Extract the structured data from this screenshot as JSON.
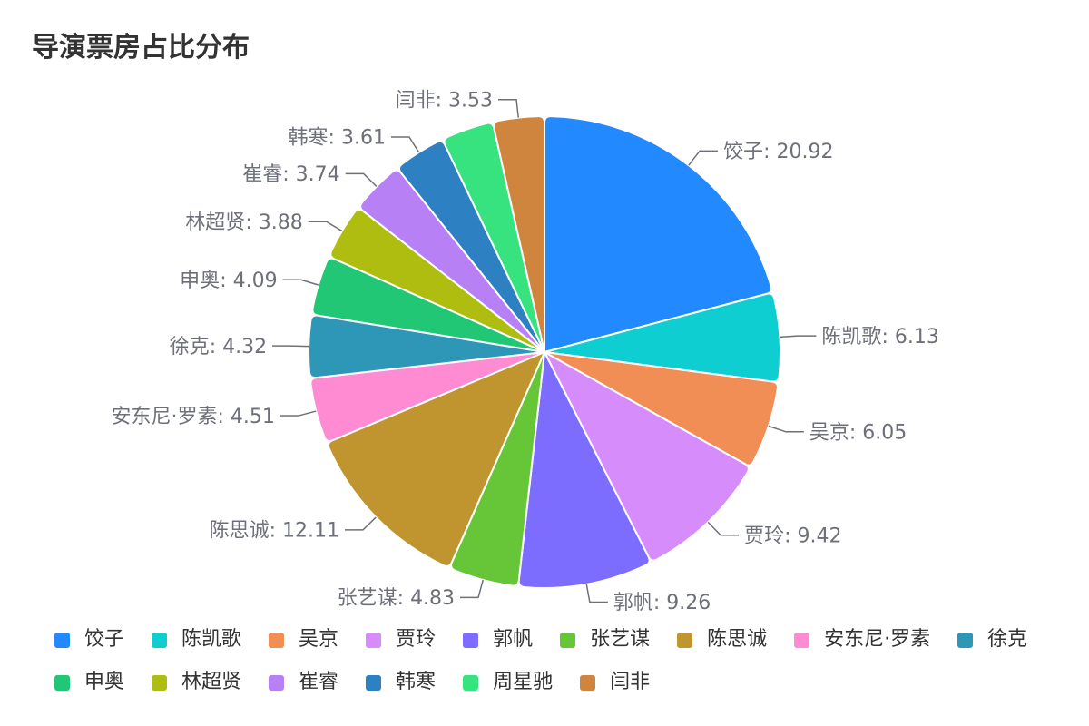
{
  "chart_data": {
    "type": "pie",
    "title": "导演票房占比分布",
    "categories": [
      "饺子",
      "陈凯歌",
      "吴京",
      "贾玲",
      "郭帆",
      "张艺谋",
      "陈思诚",
      "安东尼·罗素",
      "徐克",
      "申奥",
      "林超贤",
      "崔睿",
      "韩寒",
      "周星驰",
      "闫非"
    ],
    "values": [
      20.92,
      6.13,
      6.05,
      9.42,
      9.26,
      4.83,
      12.11,
      4.51,
      4.32,
      4.09,
      3.88,
      3.74,
      3.61,
      3.6,
      3.53
    ],
    "label_visible": [
      true,
      true,
      true,
      true,
      true,
      true,
      true,
      true,
      true,
      true,
      true,
      true,
      true,
      false,
      true
    ],
    "label_separator": ": ",
    "colors": [
      "#2389FF",
      "#0FCED1",
      "#F08E55",
      "#D68CFB",
      "#7C6DFF",
      "#67C638",
      "#C09530",
      "#FF8BD2",
      "#2E97B8",
      "#22C776",
      "#AFBD10",
      "#B880F5",
      "#2D80C2",
      "#37E37F",
      "#CF853D"
    ],
    "legend_position": "bottom"
  }
}
